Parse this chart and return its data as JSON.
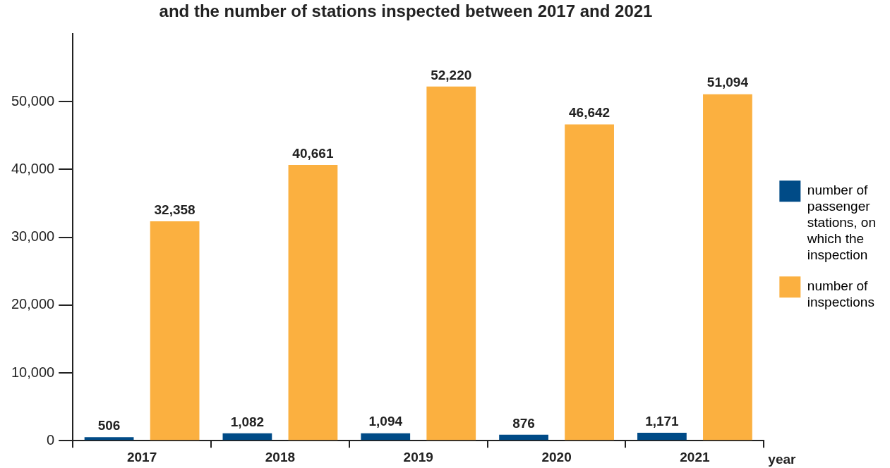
{
  "chart_data": {
    "type": "bar",
    "title": "and the number of stations inspected between 2017 and 2021",
    "xlabel": "year",
    "categories": [
      "2017",
      "2018",
      "2019",
      "2020",
      "2021"
    ],
    "series": [
      {
        "name": "number of passenger stations, on which the inspection",
        "color": "#004b87",
        "values": [
          506,
          1082,
          1094,
          876,
          1171
        ],
        "value_labels": [
          "506",
          "1,082",
          "1,094",
          "876",
          "1,171"
        ]
      },
      {
        "name": "number of inspections",
        "color": "#fbb040",
        "values": [
          32358,
          40661,
          52220,
          46642,
          51094
        ],
        "value_labels": [
          "32,358",
          "40,661",
          "52,220",
          "46,642",
          "51,094"
        ]
      }
    ],
    "ylim": [
      0,
      60000
    ],
    "yticks": [
      0,
      {
        "value": 10000,
        "label": "10,000"
      },
      {
        "value": 20000,
        "label": "20,000"
      },
      {
        "value": 30000,
        "label": "30,000"
      },
      {
        "value": 40000,
        "label": "40,000"
      },
      {
        "value": 50000,
        "label": "50,000"
      }
    ],
    "grid": false,
    "legend": "right",
    "data_labels": true
  }
}
